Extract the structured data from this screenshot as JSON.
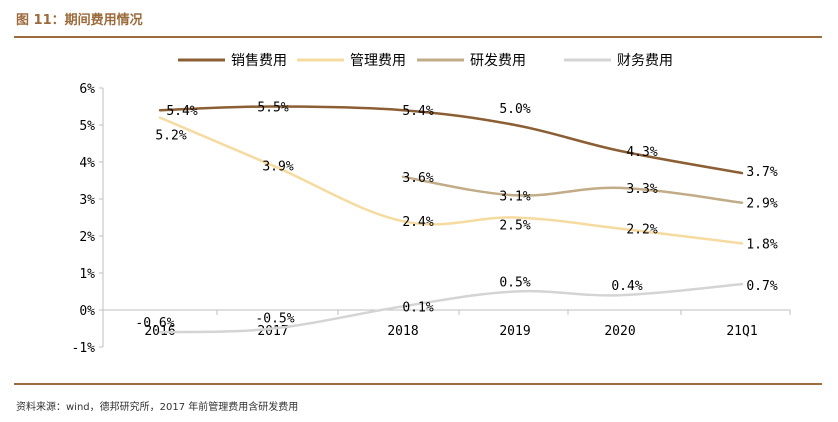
{
  "header": {
    "title": "图 11：期间费用情况"
  },
  "footer": {
    "source": "资料来源：wind，德邦研究所，2017 年前管理费用含研发费用"
  },
  "chart_data": {
    "type": "line",
    "title": "期间费用情况",
    "categories": [
      "2016",
      "2017",
      "2018",
      "2019",
      "2020",
      "21Q1"
    ],
    "x_labels_rendered": [
      "2016",
      "2017",
      "2018",
      "2019",
      "2020",
      "21Q1"
    ],
    "y_ticks": [
      "6%",
      "5%",
      "4%",
      "3%",
      "2%",
      "1%",
      "0%",
      "-1%"
    ],
    "ylim": [
      -1,
      6
    ],
    "grid": false,
    "legend_position": "top",
    "series": [
      {
        "name": "销售费用",
        "color": "#8b5e34",
        "values": [
          5.4,
          5.5,
          5.4,
          5.0,
          4.3,
          3.7
        ],
        "labels": [
          "5.4%",
          "5.5%",
          "5.4%",
          "5.0%",
          "4.3%",
          "3.7%"
        ]
      },
      {
        "name": "管理费用",
        "color": "#f6dba0",
        "values": [
          5.2,
          3.9,
          2.4,
          2.5,
          2.2,
          1.8
        ],
        "labels": [
          "5.2%",
          "3.9%",
          "2.4%",
          "2.5%",
          "2.2%",
          "1.8%"
        ]
      },
      {
        "name": "研发费用",
        "color": "#c2ac88",
        "values": [
          null,
          null,
          3.6,
          3.1,
          3.3,
          2.9
        ],
        "labels": [
          null,
          null,
          "3.6%",
          "3.1%",
          "3.3%",
          "2.9%"
        ]
      },
      {
        "name": "财务费用",
        "color": "#d4d4d4",
        "values": [
          -0.6,
          -0.5,
          0.1,
          0.5,
          0.4,
          0.7
        ],
        "labels": [
          "-0.6%",
          "-0.5%",
          "0.1%",
          "0.5%",
          "0.4%",
          "0.7%"
        ]
      }
    ]
  }
}
